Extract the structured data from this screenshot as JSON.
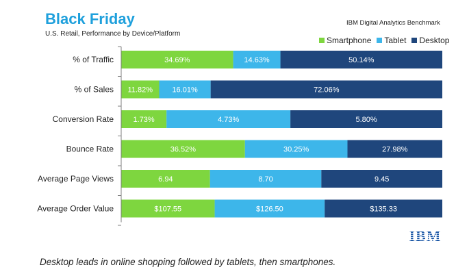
{
  "header": {
    "title": "Black Friday",
    "subtitle": "U.S. Retail, Performance by Device/Platform",
    "source": "IBM Digital Analytics Benchmark"
  },
  "footer": {
    "caption": "Desktop leads in online shopping followed by tablets, then smartphones.",
    "logo": "IBM"
  },
  "colors": {
    "smartphone": "#7ed63f",
    "tablet": "#3db6ea",
    "desktop": "#1f467c",
    "title": "#1fa0dc",
    "logo": "#1f5aa8"
  },
  "chart_data": {
    "type": "bar",
    "orientation": "horizontal",
    "stacked": true,
    "normalized": true,
    "legend_position": "top-right",
    "grid": false,
    "categories": [
      "% of Traffic",
      "% of Sales",
      "Conversion Rate",
      "Bounce Rate",
      "Average Page Views",
      "Average Order Value"
    ],
    "series": [
      {
        "name": "Smartphone",
        "values": [
          34.69,
          11.82,
          1.73,
          36.52,
          6.94,
          107.55
        ],
        "labels": [
          "34.69%",
          "11.82%",
          "1.73%",
          "36.52%",
          "6.94",
          "$107.55"
        ]
      },
      {
        "name": "Tablet",
        "values": [
          14.63,
          16.01,
          4.73,
          30.25,
          8.7,
          126.5
        ],
        "labels": [
          "14.63%",
          "16.01%",
          "4.73%",
          "30.25%",
          "8.70",
          "$126.50"
        ]
      },
      {
        "name": "Desktop",
        "values": [
          50.14,
          72.06,
          5.8,
          27.98,
          9.45,
          135.33
        ],
        "labels": [
          "50.14%",
          "72.06%",
          "5.80%",
          "27.98%",
          "9.45",
          "$135.33"
        ]
      }
    ]
  }
}
